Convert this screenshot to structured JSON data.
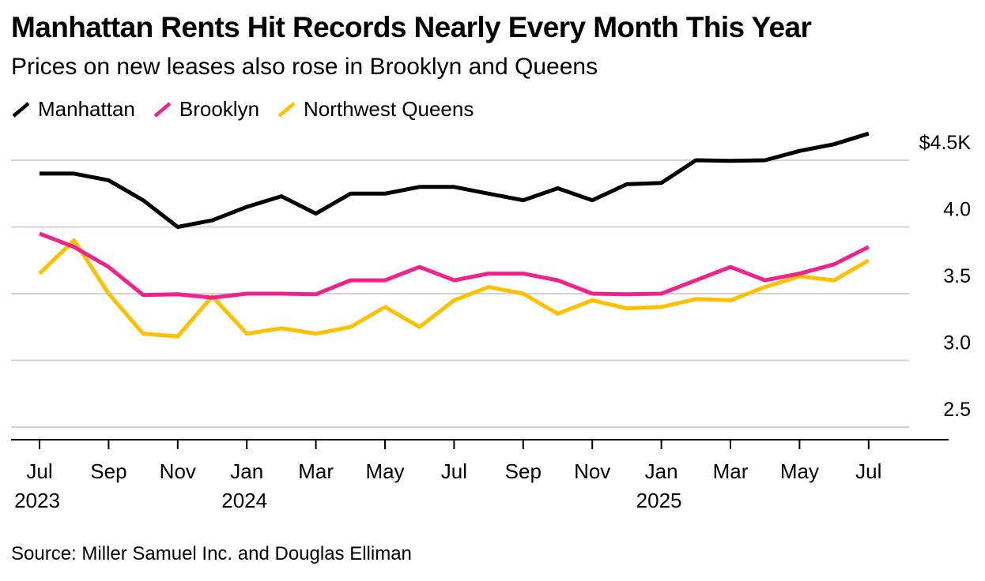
{
  "title": "Manhattan Rents Hit Records Nearly Every Month This Year",
  "subtitle": "Prices on new leases also rose in Brooklyn and Queens",
  "source": "Source: Miller Samuel Inc. and Douglas Elliman",
  "chart_data": {
    "type": "line",
    "ylim": [
      2.4,
      4.6
    ],
    "y_ticks": [
      {
        "value": 4.5,
        "label": "$4.5K"
      },
      {
        "value": 4.0,
        "label": "4.0"
      },
      {
        "value": 3.5,
        "label": "3.5"
      },
      {
        "value": 3.0,
        "label": "3.0"
      },
      {
        "value": 2.5,
        "label": "2.5"
      }
    ],
    "x": [
      "Jul 2023",
      "Aug 2023",
      "Sep 2023",
      "Oct 2023",
      "Nov 2023",
      "Dec 2023",
      "Jan 2024",
      "Feb 2024",
      "Mar 2024",
      "Apr 2024",
      "May 2024",
      "Jun 2024",
      "Jul 2024",
      "Aug 2024",
      "Sep 2024",
      "Oct 2024",
      "Nov 2024",
      "Dec 2024",
      "Jan 2025",
      "Feb 2025",
      "Mar 2025",
      "Apr 2025",
      "May 2025",
      "Jun 2025",
      "Jul 2025"
    ],
    "x_tick_labels": [
      {
        "index": 0,
        "month": "Jul",
        "year": "2023"
      },
      {
        "index": 2,
        "month": "Sep",
        "year": ""
      },
      {
        "index": 4,
        "month": "Nov",
        "year": ""
      },
      {
        "index": 6,
        "month": "Jan",
        "year": "2024"
      },
      {
        "index": 8,
        "month": "Mar",
        "year": ""
      },
      {
        "index": 10,
        "month": "May",
        "year": ""
      },
      {
        "index": 12,
        "month": "Jul",
        "year": ""
      },
      {
        "index": 14,
        "month": "Sep",
        "year": ""
      },
      {
        "index": 16,
        "month": "Nov",
        "year": ""
      },
      {
        "index": 18,
        "month": "Jan",
        "year": "2025"
      },
      {
        "index": 20,
        "month": "Mar",
        "year": ""
      },
      {
        "index": 22,
        "month": "May",
        "year": ""
      },
      {
        "index": 24,
        "month": "Jul",
        "year": ""
      }
    ],
    "series": [
      {
        "name": "Manhattan",
        "color": "#000000",
        "values": [
          4.4,
          4.4,
          4.35,
          4.2,
          4.0,
          4.05,
          4.15,
          4.23,
          4.1,
          4.25,
          4.25,
          4.3,
          4.3,
          4.25,
          4.2,
          4.29,
          4.2,
          4.32,
          4.33,
          4.5,
          4.495,
          4.5,
          4.57,
          4.62,
          4.7
        ]
      },
      {
        "name": "Brooklyn",
        "color": "#f0228b",
        "values": [
          3.95,
          3.85,
          3.7,
          3.49,
          3.495,
          3.47,
          3.5,
          3.5,
          3.495,
          3.6,
          3.6,
          3.7,
          3.6,
          3.65,
          3.65,
          3.6,
          3.5,
          3.495,
          3.5,
          3.6,
          3.7,
          3.6,
          3.65,
          3.72,
          3.85
        ]
      },
      {
        "name": "Northwest Queens",
        "color": "#ffc000",
        "values": [
          3.65,
          3.9,
          3.5,
          3.2,
          3.18,
          3.48,
          3.2,
          3.24,
          3.2,
          3.25,
          3.4,
          3.25,
          3.45,
          3.55,
          3.5,
          3.35,
          3.45,
          3.39,
          3.4,
          3.46,
          3.45,
          3.55,
          3.63,
          3.6,
          3.75
        ]
      }
    ]
  }
}
